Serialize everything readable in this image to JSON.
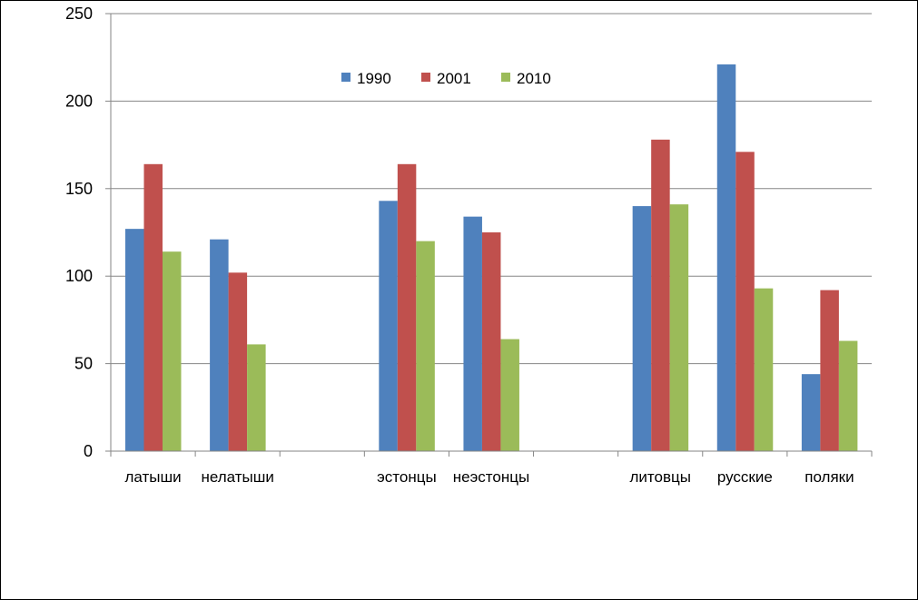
{
  "chart_data": {
    "type": "bar",
    "title": "",
    "xlabel": "",
    "ylabel": "",
    "ylim": [
      0,
      250
    ],
    "yticks": [
      0,
      50,
      100,
      150,
      200,
      250
    ],
    "grid": true,
    "legend_position": "top-center",
    "categories": [
      "латыши",
      "нелатыши",
      "",
      "эстонцы",
      "неэстонцы",
      "",
      "литовцы",
      "русские",
      "поляки"
    ],
    "series": [
      {
        "name": "1990",
        "color": "#4F81BD",
        "values": [
          127,
          121,
          0,
          143,
          134,
          0,
          140,
          221,
          44
        ]
      },
      {
        "name": "2001",
        "color": "#C0504D",
        "values": [
          164,
          102,
          0,
          164,
          125,
          0,
          178,
          171,
          92
        ]
      },
      {
        "name": "2010",
        "color": "#9BBB59",
        "values": [
          114,
          61,
          0,
          120,
          64,
          0,
          141,
          93,
          63
        ]
      }
    ]
  }
}
